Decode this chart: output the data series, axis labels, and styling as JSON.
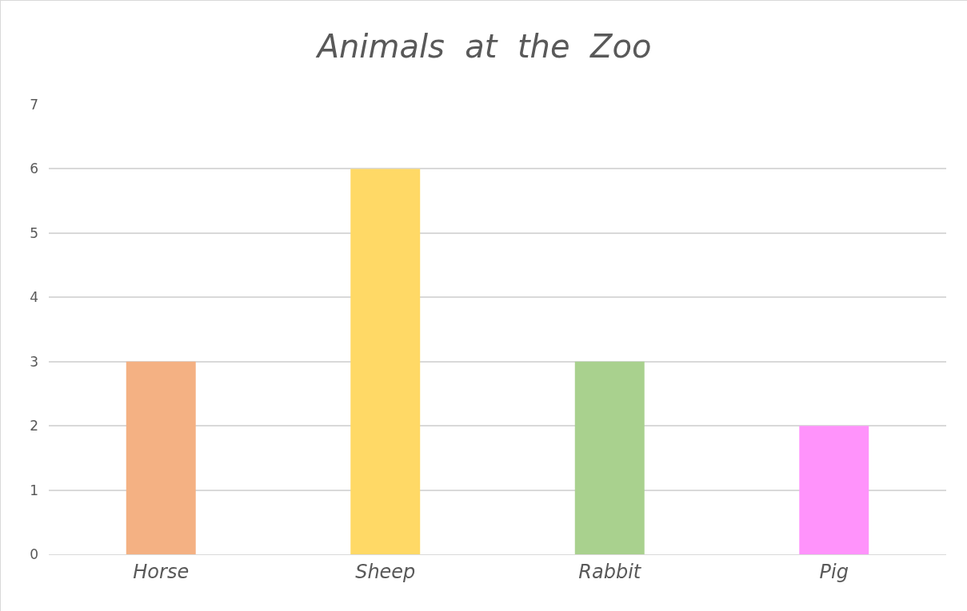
{
  "chart_data": {
    "type": "bar",
    "title": "Animals  at  the  Zoo",
    "categories": [
      "Horse",
      "Sheep",
      "Rabbit",
      "Pig"
    ],
    "values": [
      3,
      6,
      3,
      2
    ],
    "colors": [
      "#f4b183",
      "#ffd966",
      "#a9d18e",
      "#ff93fb"
    ],
    "ylim": [
      0,
      7
    ],
    "yticks": [
      0,
      1,
      2,
      3,
      4,
      5,
      6,
      7
    ],
    "grid": "y"
  }
}
